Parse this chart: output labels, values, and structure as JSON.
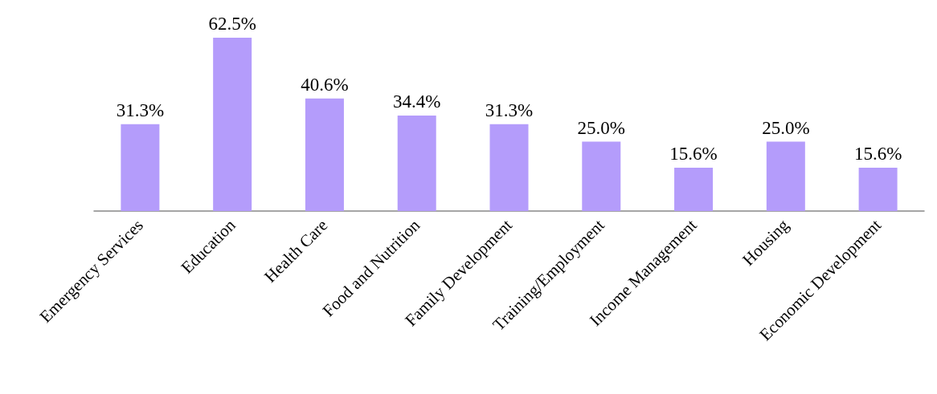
{
  "chart_data": {
    "type": "bar",
    "categories": [
      "Emergency Services",
      "Education",
      "Health Care",
      "Food and Nutrition",
      "Family Development",
      "Training/Employment",
      "Income Management",
      "Housing",
      "Economic Development"
    ],
    "values": [
      31.3,
      62.5,
      40.6,
      34.4,
      31.3,
      25.0,
      15.6,
      25.0,
      15.6
    ],
    "value_labels": [
      "31.3%",
      "62.5%",
      "40.6%",
      "34.4%",
      "31.3%",
      "25.0%",
      "15.6%",
      "25.0%",
      "15.6%"
    ],
    "color": "#b49cfb"
  }
}
